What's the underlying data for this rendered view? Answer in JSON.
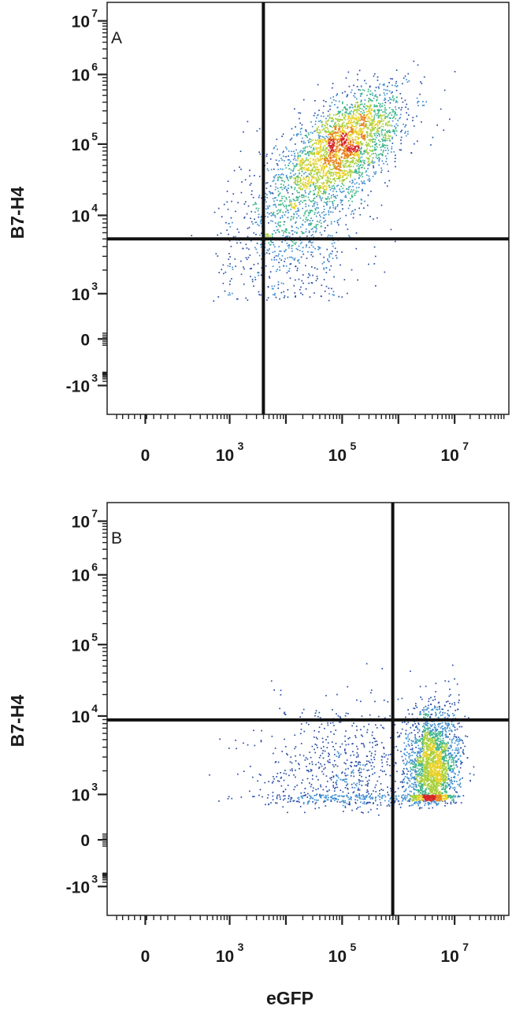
{
  "chart_data": [
    {
      "type": "scatter",
      "panel_label": "A",
      "xlabel": "",
      "ylabel": "B7-H4",
      "x_ticks": [
        {
          "value": 0,
          "base": "0",
          "exp": ""
        },
        {
          "value": 3,
          "base": "10",
          "exp": "3"
        },
        {
          "value": 5,
          "base": "10",
          "exp": "5"
        },
        {
          "value": 7,
          "base": "10",
          "exp": "7"
        }
      ],
      "y_ticks": [
        {
          "value": -3,
          "base": "-10",
          "exp": "3"
        },
        {
          "value": 0,
          "base": "0",
          "exp": ""
        },
        {
          "value": 3,
          "base": "10",
          "exp": "3"
        },
        {
          "value": 4,
          "base": "10",
          "exp": "4"
        },
        {
          "value": 5,
          "base": "10",
          "exp": "5"
        },
        {
          "value": 6,
          "base": "10",
          "exp": "6"
        },
        {
          "value": 7,
          "base": "10",
          "exp": "7"
        }
      ],
      "gate": {
        "x": 3.6,
        "y": 3.7
      },
      "populations": [
        {
          "cx": 5.1,
          "cy": 5.05,
          "sx": 0.5,
          "sy": 0.38,
          "rho": 0.55,
          "n": 2200
        },
        {
          "cx": 4.3,
          "cy": 4.3,
          "sx": 0.6,
          "sy": 0.45,
          "rho": 0.3,
          "n": 900
        },
        {
          "cx": 4.0,
          "cy": 3.5,
          "sx": 0.7,
          "sy": 0.35,
          "rho": 0.1,
          "n": 350
        }
      ],
      "density_colors": [
        "#2a4ea8",
        "#3f8fd0",
        "#3fb58a",
        "#a8cf3a",
        "#e8d22a",
        "#e8831e",
        "#d6262a"
      ]
    },
    {
      "type": "scatter",
      "panel_label": "B",
      "xlabel": "eGFP",
      "ylabel": "B7-H4",
      "x_ticks": [
        {
          "value": 0,
          "base": "0",
          "exp": ""
        },
        {
          "value": 3,
          "base": "10",
          "exp": "3"
        },
        {
          "value": 5,
          "base": "10",
          "exp": "5"
        },
        {
          "value": 7,
          "base": "10",
          "exp": "7"
        }
      ],
      "y_ticks": [
        {
          "value": -3,
          "base": "-10",
          "exp": "3"
        },
        {
          "value": 0,
          "base": "0",
          "exp": ""
        },
        {
          "value": 3,
          "base": "10",
          "exp": "3"
        },
        {
          "value": 4,
          "base": "10",
          "exp": "4"
        },
        {
          "value": 5,
          "base": "10",
          "exp": "5"
        },
        {
          "value": 6,
          "base": "10",
          "exp": "6"
        },
        {
          "value": 7,
          "base": "10",
          "exp": "7"
        }
      ],
      "gate": {
        "x": 5.9,
        "y": 3.95
      },
      "populations": [
        {
          "cx": 6.6,
          "cy": 3.35,
          "sx": 0.22,
          "sy": 0.38,
          "rho": 0.1,
          "n": 2300
        },
        {
          "cx": 5.1,
          "cy": 3.2,
          "sx": 0.8,
          "sy": 0.5,
          "rho": 0.05,
          "n": 900
        }
      ],
      "density_colors": [
        "#2a4ea8",
        "#3f8fd0",
        "#3fb58a",
        "#a8cf3a",
        "#e8d22a",
        "#e8831e",
        "#d6262a"
      ]
    }
  ]
}
